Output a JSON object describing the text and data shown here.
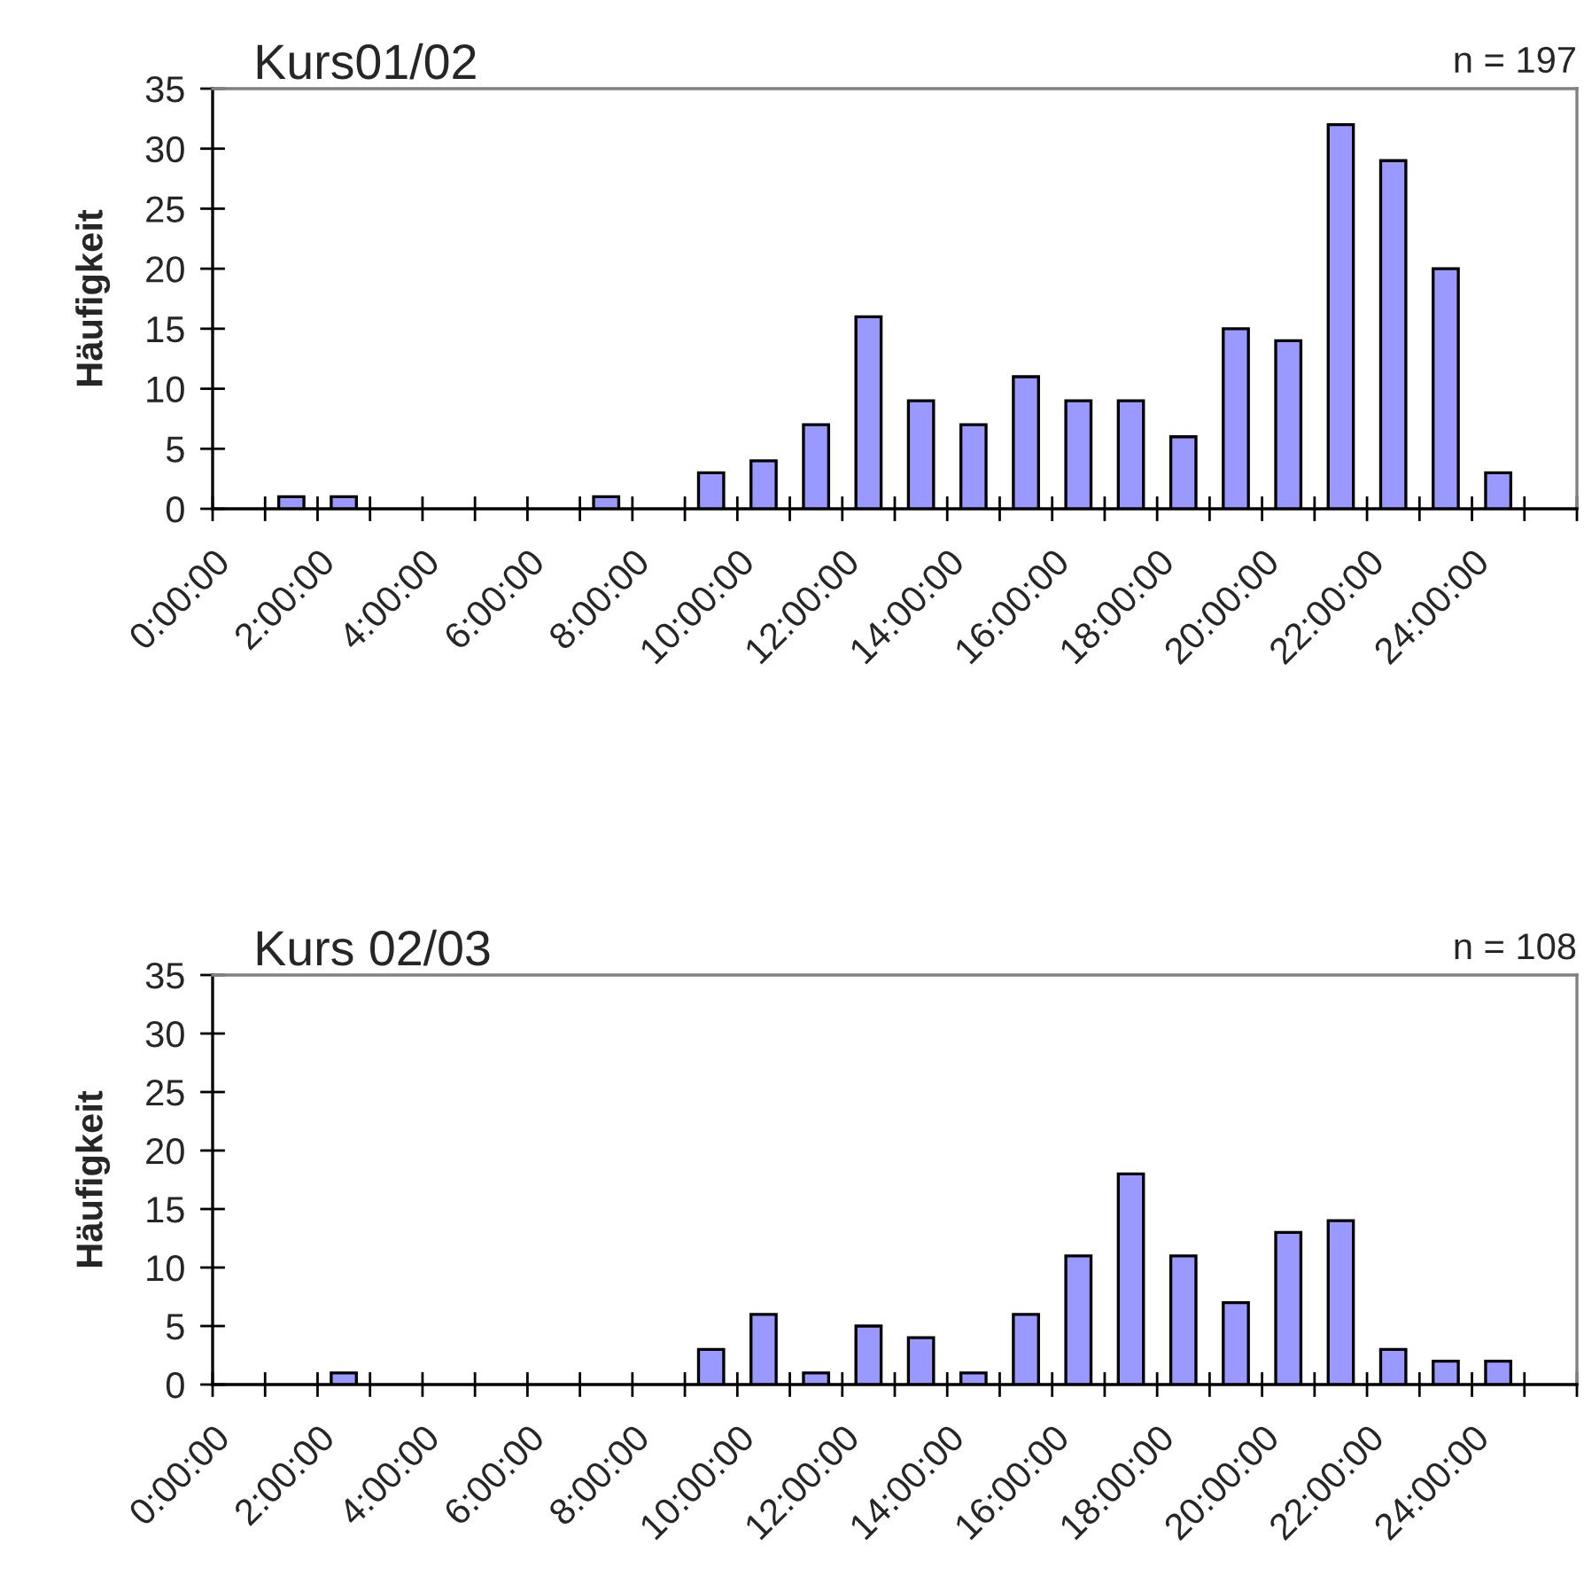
{
  "chart_data": [
    {
      "type": "bar",
      "title": "Kurs01/02",
      "ylabel": "Häufigkeit",
      "annotations": [
        "n = 197"
      ],
      "color": "#9999ff",
      "x": [
        1.5,
        2.5,
        7.5,
        9.5,
        10.5,
        11.5,
        12.5,
        13.5,
        14.5,
        15.5,
        16.5,
        17.5,
        18.5,
        19.5,
        20.5,
        21.5,
        22.5,
        23.5,
        24.5
      ],
      "values": [
        1,
        1,
        1,
        3,
        4,
        7,
        16,
        9,
        7,
        11,
        9,
        9,
        6,
        15,
        14,
        32,
        29,
        20,
        3
      ],
      "xlim": [
        0,
        26
      ],
      "xticks": [
        {
          "value": 0,
          "label": "0:00:00"
        },
        {
          "value": 1,
          "label": null
        },
        {
          "value": 2,
          "label": "2:00:00"
        },
        {
          "value": 3,
          "label": null
        },
        {
          "value": 4,
          "label": "4:00:00"
        },
        {
          "value": 5,
          "label": null
        },
        {
          "value": 6,
          "label": "6:00:00"
        },
        {
          "value": 7,
          "label": null
        },
        {
          "value": 8,
          "label": "8:00:00"
        },
        {
          "value": 9,
          "label": null
        },
        {
          "value": 10,
          "label": "10:00:00"
        },
        {
          "value": 11,
          "label": null
        },
        {
          "value": 12,
          "label": "12:00:00"
        },
        {
          "value": 13,
          "label": null
        },
        {
          "value": 14,
          "label": "14:00:00"
        },
        {
          "value": 15,
          "label": null
        },
        {
          "value": 16,
          "label": "16:00:00"
        },
        {
          "value": 17,
          "label": null
        },
        {
          "value": 18,
          "label": "18:00:00"
        },
        {
          "value": 19,
          "label": null
        },
        {
          "value": 20,
          "label": "20:00:00"
        },
        {
          "value": 21,
          "label": null
        },
        {
          "value": 22,
          "label": "22:00:00"
        },
        {
          "value": 23,
          "label": null
        },
        {
          "value": 24,
          "label": "24:00:00"
        },
        {
          "value": 25,
          "label": null
        },
        {
          "value": 26,
          "label": null
        }
      ],
      "ylim": [
        0,
        35
      ],
      "yticks": [
        0,
        5,
        10,
        15,
        20,
        25,
        30,
        35
      ],
      "grid": false,
      "legend": false
    },
    {
      "type": "bar",
      "title": "Kurs 02/03",
      "ylabel": "Häufigkeit",
      "annotations": [
        "n = 108"
      ],
      "color": "#9999ff",
      "x": [
        2.5,
        9.5,
        10.5,
        11.5,
        12.5,
        13.5,
        14.5,
        15.5,
        16.5,
        17.5,
        18.5,
        19.5,
        20.5,
        21.5,
        22.5,
        23.5,
        24.5
      ],
      "values": [
        1,
        3,
        6,
        1,
        5,
        4,
        1,
        6,
        11,
        18,
        11,
        7,
        13,
        14,
        3,
        2,
        2
      ],
      "xlim": [
        0,
        26
      ],
      "xticks": [
        {
          "value": 0,
          "label": "0:00:00"
        },
        {
          "value": 1,
          "label": null
        },
        {
          "value": 2,
          "label": "2:00:00"
        },
        {
          "value": 3,
          "label": null
        },
        {
          "value": 4,
          "label": "4:00:00"
        },
        {
          "value": 5,
          "label": null
        },
        {
          "value": 6,
          "label": "6:00:00"
        },
        {
          "value": 7,
          "label": null
        },
        {
          "value": 8,
          "label": "8:00:00"
        },
        {
          "value": 9,
          "label": null
        },
        {
          "value": 10,
          "label": "10:00:00"
        },
        {
          "value": 11,
          "label": null
        },
        {
          "value": 12,
          "label": "12:00:00"
        },
        {
          "value": 13,
          "label": null
        },
        {
          "value": 14,
          "label": "14:00:00"
        },
        {
          "value": 15,
          "label": null
        },
        {
          "value": 16,
          "label": "16:00:00"
        },
        {
          "value": 17,
          "label": null
        },
        {
          "value": 18,
          "label": "18:00:00"
        },
        {
          "value": 19,
          "label": null
        },
        {
          "value": 20,
          "label": "20:00:00"
        },
        {
          "value": 21,
          "label": null
        },
        {
          "value": 22,
          "label": "22:00:00"
        },
        {
          "value": 23,
          "label": null
        },
        {
          "value": 24,
          "label": "24:00:00"
        },
        {
          "value": 25,
          "label": null
        },
        {
          "value": 26,
          "label": null
        }
      ],
      "ylim": [
        0,
        35
      ],
      "yticks": [
        0,
        5,
        10,
        15,
        20,
        25,
        30,
        35
      ],
      "grid": false,
      "legend": false
    }
  ]
}
